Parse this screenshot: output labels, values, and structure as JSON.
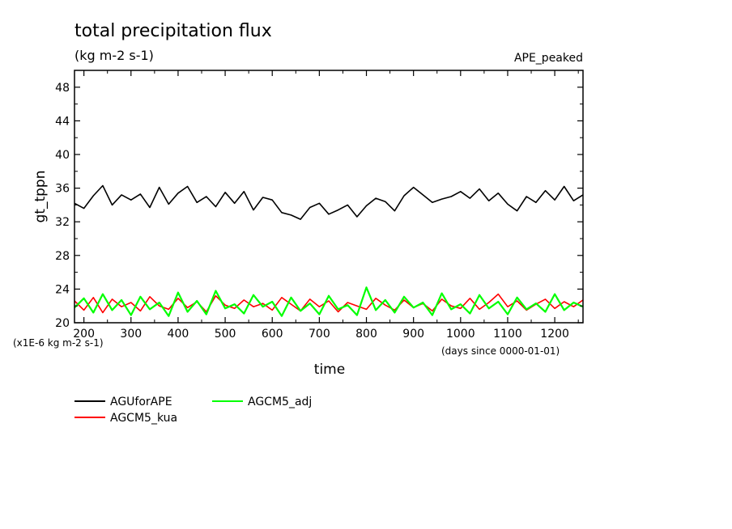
{
  "header": {
    "title": "total precipitation flux",
    "units": "(kg m-2 s-1)",
    "experiment": "APE_peaked"
  },
  "chart_data": {
    "type": "line",
    "title": "total precipitation flux",
    "subtitle": "(kg m-2 s-1)",
    "xlabel": "time",
    "ylabel": "gt_tppn",
    "x_unit_note": "(days since 0000-01-01)",
    "y_scale_note": "(x1E-6 kg m-2 s-1)",
    "xlim": [
      180,
      1260
    ],
    "ylim": [
      20,
      50
    ],
    "x_ticks": [
      200,
      300,
      400,
      500,
      600,
      700,
      800,
      900,
      1000,
      1100,
      1200
    ],
    "y_ticks": [
      20,
      24,
      28,
      32,
      36,
      40,
      44,
      48
    ],
    "grid": false,
    "legend_position": "bottom-left",
    "series": [
      {
        "name": "AGUforAPE",
        "color": "#000000",
        "x": [
          180,
          200,
          220,
          240,
          260,
          280,
          300,
          320,
          340,
          360,
          380,
          400,
          420,
          440,
          460,
          480,
          500,
          520,
          540,
          560,
          580,
          600,
          620,
          640,
          660,
          680,
          700,
          720,
          740,
          760,
          780,
          800,
          820,
          840,
          860,
          880,
          900,
          920,
          940,
          960,
          980,
          1000,
          1020,
          1040,
          1060,
          1080,
          1100,
          1120,
          1140,
          1160,
          1180,
          1200,
          1220,
          1240,
          1260
        ],
        "values": [
          34.2,
          33.6,
          35.1,
          36.3,
          34.0,
          35.2,
          34.6,
          35.3,
          33.7,
          36.1,
          34.1,
          35.4,
          36.2,
          34.3,
          35.0,
          33.8,
          35.5,
          34.2,
          35.6,
          33.4,
          34.9,
          34.6,
          33.1,
          32.8,
          32.3,
          33.7,
          34.2,
          32.9,
          33.4,
          34.0,
          32.6,
          33.9,
          34.8,
          34.4,
          33.3,
          35.1,
          36.1,
          35.2,
          34.3,
          34.7,
          35.0,
          35.6,
          34.8,
          35.9,
          34.5,
          35.4,
          34.1,
          33.3,
          35.0,
          34.3,
          35.7,
          34.6,
          36.2,
          34.5,
          35.2
        ]
      },
      {
        "name": "AGCM5_kua",
        "color": "#ff0000",
        "x": [
          180,
          200,
          220,
          240,
          260,
          280,
          300,
          320,
          340,
          360,
          380,
          400,
          420,
          440,
          460,
          480,
          500,
          520,
          540,
          560,
          580,
          600,
          620,
          640,
          660,
          680,
          700,
          720,
          740,
          760,
          780,
          800,
          820,
          840,
          860,
          880,
          900,
          920,
          940,
          960,
          980,
          1000,
          1020,
          1040,
          1060,
          1080,
          1100,
          1120,
          1140,
          1160,
          1180,
          1200,
          1220,
          1240,
          1260
        ],
        "values": [
          22.6,
          21.5,
          23.0,
          21.2,
          22.8,
          21.9,
          22.4,
          21.4,
          23.1,
          22.0,
          21.6,
          22.9,
          21.8,
          22.5,
          21.3,
          23.2,
          22.1,
          21.7,
          22.7,
          21.9,
          22.3,
          21.5,
          23.0,
          22.2,
          21.4,
          22.8,
          21.9,
          22.6,
          21.3,
          22.4,
          22.0,
          21.6,
          22.9,
          22.1,
          21.5,
          22.7,
          21.8,
          22.3,
          21.4,
          22.8,
          22.0,
          21.7,
          22.9,
          21.6,
          22.4,
          23.4,
          21.9,
          22.6,
          21.5,
          22.2,
          22.8,
          21.7,
          22.5,
          21.9,
          22.7
        ]
      },
      {
        "name": "AGCM5_adj",
        "color": "#00ff00",
        "x": [
          180,
          200,
          220,
          240,
          260,
          280,
          300,
          320,
          340,
          360,
          380,
          400,
          420,
          440,
          460,
          480,
          500,
          520,
          540,
          560,
          580,
          600,
          620,
          640,
          660,
          680,
          700,
          720,
          740,
          760,
          780,
          800,
          820,
          840,
          860,
          880,
          900,
          920,
          940,
          960,
          980,
          1000,
          1020,
          1040,
          1060,
          1080,
          1100,
          1120,
          1140,
          1160,
          1180,
          1200,
          1220,
          1240,
          1260
        ],
        "values": [
          21.8,
          22.9,
          21.2,
          23.4,
          21.5,
          22.7,
          20.9,
          23.1,
          21.6,
          22.4,
          20.8,
          23.6,
          21.3,
          22.6,
          21.0,
          23.8,
          21.7,
          22.2,
          21.1,
          23.3,
          21.9,
          22.5,
          20.8,
          23.0,
          21.4,
          22.3,
          21.0,
          23.2,
          21.6,
          22.1,
          20.9,
          24.2,
          21.5,
          22.7,
          21.2,
          23.1,
          21.8,
          22.4,
          20.9,
          23.5,
          21.6,
          22.2,
          21.1,
          23.3,
          21.7,
          22.5,
          21.0,
          23.0,
          21.6,
          22.3,
          21.3,
          23.4,
          21.5,
          22.4,
          21.9
        ]
      }
    ]
  }
}
